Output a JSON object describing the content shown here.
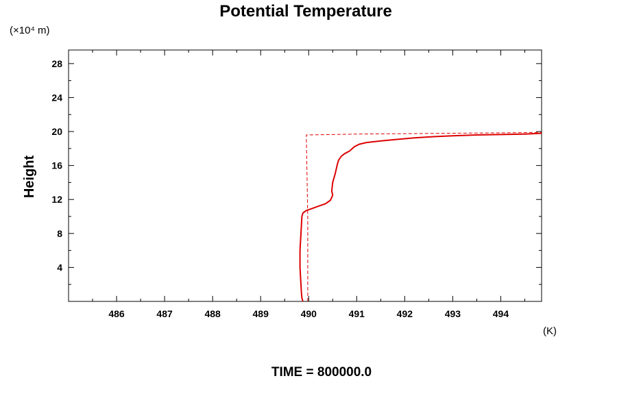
{
  "chart_data": {
    "type": "line",
    "title": "Potential Temperature",
    "ylabel": "Height",
    "y_unit": "(×10⁴ m)",
    "x_unit": "(K)",
    "footer": "TIME = 800000.0",
    "xlim": [
      485.0,
      494.85
    ],
    "ylim": [
      0,
      29.6
    ],
    "x_ticks": [
      486,
      487,
      488,
      489,
      490,
      491,
      492,
      493,
      494
    ],
    "y_ticks": [
      4,
      8,
      12,
      16,
      20,
      24,
      28
    ],
    "x_minor_step": 0.5,
    "y_minor_step": 2,
    "grid": false,
    "series": [
      {
        "style": "solid",
        "color": "#dd0000",
        "points": [
          [
            489.88,
            0.0
          ],
          [
            489.86,
            0.4
          ],
          [
            489.85,
            1.0
          ],
          [
            489.84,
            2.0
          ],
          [
            489.83,
            3.0
          ],
          [
            489.82,
            4.0
          ],
          [
            489.82,
            5.0
          ],
          [
            489.82,
            6.0
          ],
          [
            489.83,
            7.0
          ],
          [
            489.84,
            8.0
          ],
          [
            489.85,
            9.0
          ],
          [
            489.86,
            10.0
          ],
          [
            489.88,
            10.4
          ],
          [
            489.95,
            10.7
          ],
          [
            490.05,
            10.9
          ],
          [
            490.2,
            11.2
          ],
          [
            490.35,
            11.5
          ],
          [
            490.45,
            11.9
          ],
          [
            490.5,
            12.5
          ],
          [
            490.48,
            13.0
          ],
          [
            490.5,
            14.0
          ],
          [
            490.55,
            15.0
          ],
          [
            490.6,
            16.2
          ],
          [
            490.62,
            16.6
          ],
          [
            490.68,
            17.1
          ],
          [
            490.75,
            17.4
          ],
          [
            490.85,
            17.7
          ],
          [
            490.95,
            18.2
          ],
          [
            491.05,
            18.5
          ],
          [
            491.2,
            18.7
          ],
          [
            491.5,
            18.9
          ],
          [
            491.8,
            19.05
          ],
          [
            492.2,
            19.25
          ],
          [
            492.6,
            19.4
          ],
          [
            493.0,
            19.5
          ],
          [
            493.5,
            19.6
          ],
          [
            494.0,
            19.65
          ],
          [
            494.5,
            19.7
          ],
          [
            494.8,
            19.78
          ],
          [
            494.85,
            19.8
          ]
        ]
      },
      {
        "style": "dashed",
        "color": "#dd0000",
        "points": [
          [
            489.98,
            0.0
          ],
          [
            489.98,
            10.0
          ],
          [
            489.95,
            19.6
          ],
          [
            490.5,
            19.65
          ],
          [
            491.0,
            19.7
          ],
          [
            492.0,
            19.75
          ],
          [
            493.0,
            19.8
          ],
          [
            494.0,
            19.85
          ],
          [
            494.85,
            19.9
          ]
        ]
      }
    ]
  }
}
